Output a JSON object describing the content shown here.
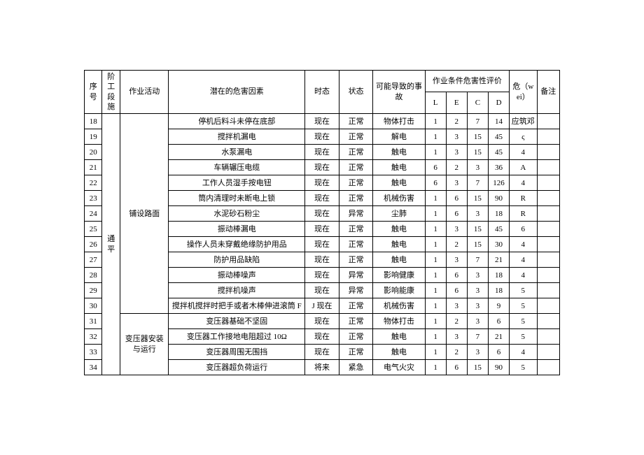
{
  "headers": {
    "seq": "序号",
    "stage": "阶工段施",
    "activity": "作业活动",
    "hazard": "潜在的危害因素",
    "tense": "时态",
    "state": "状态",
    "consequence": "可能导致的事故",
    "eval": "作业条件危害性评价",
    "L": "L",
    "E": "E",
    "C": "C",
    "D": "D",
    "wei": "危（wei）",
    "remark": "备注"
  },
  "stage_label": "通 平",
  "activities": {
    "a1": "铺设路面",
    "a2": "变压器安装与运行"
  },
  "rows": [
    {
      "seq": "18",
      "hazard": "停机后料斗未停在底部",
      "tense": "现在",
      "state": "正常",
      "conseq": "物体打击",
      "L": "1",
      "E": "2",
      "C": "7",
      "D": "14",
      "wei": "应筑邓"
    },
    {
      "seq": "19",
      "hazard": "搅拌机漏电",
      "tense": "现在",
      "state": "正常",
      "conseq": "解电",
      "L": "1",
      "E": "3",
      "C": "15",
      "D": "45",
      "wei": "ς"
    },
    {
      "seq": "20",
      "hazard": "水泵漏电",
      "tense": "现在",
      "state": "正常",
      "conseq": "触电",
      "L": "1",
      "E": "3",
      "C": "15",
      "D": "45",
      "wei": "4"
    },
    {
      "seq": "21",
      "hazard": "车辆辗压电缆",
      "tense": "现在",
      "state": "正常",
      "conseq": "触电",
      "L": "6",
      "E": "2",
      "C": "3",
      "D": "36",
      "wei": "A"
    },
    {
      "seq": "22",
      "hazard": "工作人员湿手按电钮",
      "tense": "现在",
      "state": "正常",
      "conseq": "触电",
      "L": "6",
      "E": "3",
      "C": "7",
      "D": "126",
      "wei": "4"
    },
    {
      "seq": "23",
      "hazard": "筒内清理时未断电上锁",
      "tense": "现在",
      "state": "正常",
      "conseq": "机械伤害",
      "L": "1",
      "E": "6",
      "C": "15",
      "D": "90",
      "wei": "R"
    },
    {
      "seq": "24",
      "hazard": "水泥砂石粉尘",
      "tense": "现在",
      "state": "异常",
      "conseq": "尘肺",
      "L": "1",
      "E": "6",
      "C": "3",
      "D": "18",
      "wei": "R"
    },
    {
      "seq": "25",
      "hazard": "振动棒漏电",
      "tense": "现在",
      "state": "正常",
      "conseq": "触电",
      "L": "1",
      "E": "3",
      "C": "15",
      "D": "45",
      "wei": "6"
    },
    {
      "seq": "26",
      "hazard": "操作人员未穿戴绝缘防护用品",
      "tense": "现在",
      "state": "正常",
      "conseq": "触电",
      "L": "1",
      "E": "2",
      "C": "15",
      "D": "30",
      "wei": "4"
    },
    {
      "seq": "27",
      "hazard": "防护用品缺陷",
      "tense": "现在",
      "state": "正常",
      "conseq": "触电",
      "L": "1",
      "E": "3",
      "C": "7",
      "D": "21",
      "wei": "4"
    },
    {
      "seq": "28",
      "hazard": "振动棒噪声",
      "tense": "现在",
      "state": "异常",
      "conseq": "影响健康",
      "L": "1",
      "E": "6",
      "C": "3",
      "D": "18",
      "wei": "4"
    },
    {
      "seq": "29",
      "hazard": "搅拌机噪声",
      "tense": "现在",
      "state": "异常",
      "conseq": "影响能康",
      "L": "1",
      "E": "6",
      "C": "3",
      "D": "18",
      "wei": "5"
    },
    {
      "seq": "30",
      "hazard": "搅拌机搅拌时把手或者木棒伸进滚筒 F",
      "tense": "J 现在",
      "state": "正常",
      "conseq": "机械伤害",
      "L": "1",
      "E": "3",
      "C": "3",
      "D": "9",
      "wei": "5"
    },
    {
      "seq": "31",
      "hazard": "变压器基础不坚固",
      "tense": "现在",
      "state": "正常",
      "conseq": "物体打击",
      "L": "1",
      "E": "2",
      "C": "3",
      "D": "6",
      "wei": "5"
    },
    {
      "seq": "32",
      "hazard": "变压器工作接地电阻超过 10Ω",
      "tense": "现在",
      "state": "正常",
      "conseq": "触电",
      "L": "1",
      "E": "3",
      "C": "7",
      "D": "21",
      "wei": "5"
    },
    {
      "seq": "33",
      "hazard": "变压器周围无围挡",
      "tense": "现在",
      "state": "正常",
      "conseq": "触电",
      "L": "1",
      "E": "2",
      "C": "3",
      "D": "6",
      "wei": "4"
    },
    {
      "seq": "34",
      "hazard": "变压器超负荷运行",
      "tense": "将来",
      "state": "紧急",
      "conseq": "电气火灾",
      "L": "1",
      "E": "6",
      "C": "15",
      "D": "90",
      "wei": "5"
    }
  ]
}
